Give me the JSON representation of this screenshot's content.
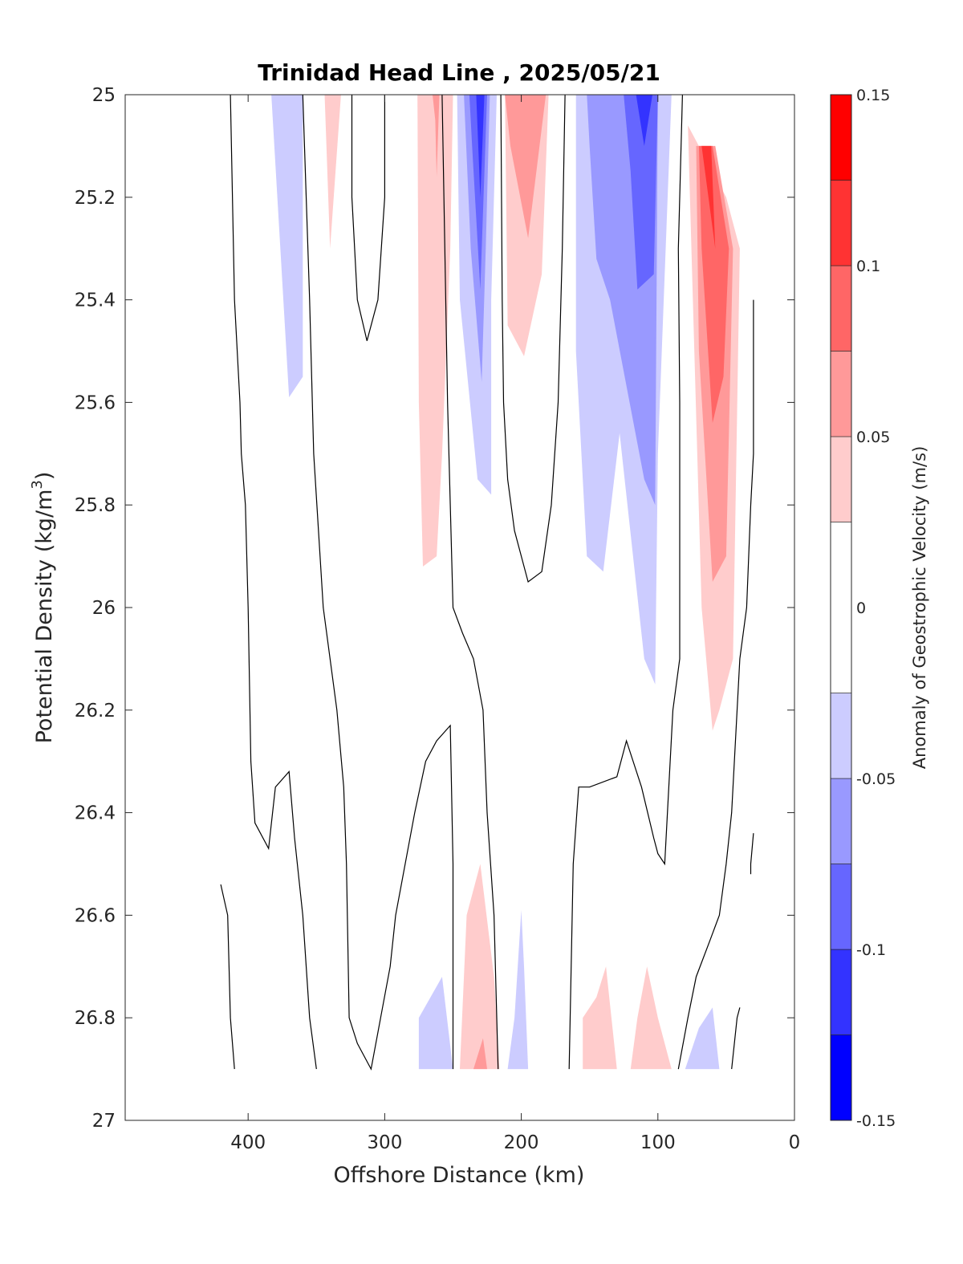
{
  "chart_data": {
    "type": "contour",
    "title": "Trinidad Head Line , 2025/05/21",
    "xlabel": "Offshore Distance (km)",
    "ylabel_main": "Potential Density (kg/m",
    "ylabel_sup": "3",
    "ylabel_close": ")",
    "xlim": [
      490,
      0
    ],
    "ylim": [
      25,
      27
    ],
    "y_reversed": true,
    "x_reversed": true,
    "xticks": [
      400,
      300,
      200,
      100,
      0
    ],
    "xtick_labels": [
      "400",
      "300",
      "200",
      "100",
      "0"
    ],
    "yticks": [
      25,
      25.2,
      25.4,
      25.6,
      25.8,
      26,
      26.2,
      26.4,
      26.6,
      26.8,
      27
    ],
    "ytick_labels": [
      "25",
      "25.2",
      "25.4",
      "25.6",
      "25.8",
      "26",
      "26.2",
      "26.4",
      "26.6",
      "26.8",
      "27"
    ],
    "colorbar": {
      "title": "Anomaly of Geostrophic Velocity (m/s)",
      "range": [
        -0.15,
        0.15
      ],
      "levels": [
        -0.15,
        -0.125,
        -0.1,
        -0.075,
        -0.05,
        -0.025,
        0.025,
        0.05,
        0.075,
        0.1,
        0.125,
        0.15
      ],
      "colors": [
        "#0000ff",
        "#3333ff",
        "#6666ff",
        "#9999ff",
        "#ccccff",
        "#ffffff",
        "#ffcccc",
        "#ff9999",
        "#ff6666",
        "#ff3333",
        "#ff0000"
      ],
      "ticks": [
        -0.15,
        -0.1,
        -0.05,
        0,
        0.05,
        0.1,
        0.15
      ],
      "tick_labels": [
        "-0.15",
        "-0.1",
        "-0.05",
        "0",
        "0.05",
        "0.1",
        "0.15"
      ]
    },
    "filled_regions": [
      {
        "level": -0.05,
        "points": [
          [
            383,
            25
          ],
          [
            360,
            25
          ],
          [
            360,
            25.55
          ],
          [
            370,
            25.59
          ]
        ]
      },
      {
        "level": 0.05,
        "points": [
          [
            344,
            25
          ],
          [
            332,
            25
          ],
          [
            340,
            25.3
          ]
        ]
      },
      {
        "level": 0.05,
        "points": [
          [
            276,
            25
          ],
          [
            250,
            25
          ],
          [
            252,
            25.3
          ],
          [
            258,
            25.7
          ],
          [
            262,
            25.9
          ],
          [
            272,
            25.92
          ],
          [
            275,
            25.6
          ]
        ]
      },
      {
        "level": 0.075,
        "points": [
          [
            265,
            25
          ],
          [
            260,
            25
          ],
          [
            262,
            25.16
          ],
          [
            263,
            25.05
          ]
        ]
      },
      {
        "level": -0.05,
        "points": [
          [
            247,
            25
          ],
          [
            218,
            25
          ],
          [
            222,
            25.4
          ],
          [
            222,
            25.78
          ],
          [
            232,
            25.75
          ],
          [
            245,
            25.4
          ]
        ]
      },
      {
        "level": -0.075,
        "points": [
          [
            242,
            25
          ],
          [
            223,
            25
          ],
          [
            226,
            25.3
          ],
          [
            229,
            25.56
          ],
          [
            237,
            25.3
          ]
        ]
      },
      {
        "level": -0.1,
        "points": [
          [
            238,
            25
          ],
          [
            225,
            25
          ],
          [
            230,
            25.38
          ],
          [
            236,
            25.1
          ]
        ]
      },
      {
        "level": -0.125,
        "points": [
          [
            233,
            25
          ],
          [
            227,
            25
          ],
          [
            230,
            25.2
          ]
        ]
      },
      {
        "level": 0.05,
        "points": [
          [
            212,
            25
          ],
          [
            180,
            25
          ],
          [
            185,
            25.35
          ],
          [
            198,
            25.51
          ],
          [
            210,
            25.45
          ]
        ]
      },
      {
        "level": 0.075,
        "points": [
          [
            212,
            25
          ],
          [
            182,
            25
          ],
          [
            195,
            25.28
          ],
          [
            208,
            25.1
          ]
        ]
      },
      {
        "level": -0.05,
        "points": [
          [
            160,
            25
          ],
          [
            90,
            25
          ],
          [
            100,
            25.7
          ],
          [
            102,
            26.15
          ],
          [
            110,
            26.1
          ],
          [
            128,
            25.66
          ],
          [
            140,
            25.93
          ],
          [
            152,
            25.9
          ],
          [
            160,
            25.5
          ]
        ]
      },
      {
        "level": -0.075,
        "points": [
          [
            152,
            25
          ],
          [
            100,
            25
          ],
          [
            102,
            25.8
          ],
          [
            110,
            25.75
          ],
          [
            135,
            25.4
          ],
          [
            145,
            25.32
          ],
          [
            150,
            25.1
          ]
        ]
      },
      {
        "level": -0.1,
        "points": [
          [
            125,
            25
          ],
          [
            100,
            25
          ],
          [
            103,
            25.35
          ],
          [
            115,
            25.38
          ],
          [
            120,
            25.15
          ]
        ]
      },
      {
        "level": -0.125,
        "points": [
          [
            116,
            25
          ],
          [
            104,
            25
          ],
          [
            110,
            25.1
          ]
        ]
      },
      {
        "level": 0.05,
        "points": [
          [
            78,
            25.06
          ],
          [
            50,
            25.2
          ],
          [
            40,
            25.3
          ],
          [
            45,
            26.1
          ],
          [
            55,
            26.2
          ],
          [
            60,
            26.24
          ],
          [
            68,
            26
          ]
        ]
      },
      {
        "level": 0.075,
        "points": [
          [
            72,
            25.1
          ],
          [
            58,
            25.1
          ],
          [
            45,
            25.3
          ],
          [
            50,
            25.9
          ],
          [
            60,
            25.95
          ],
          [
            70,
            25.5
          ]
        ]
      },
      {
        "level": 0.1,
        "points": [
          [
            70,
            25.1
          ],
          [
            60,
            25.1
          ],
          [
            48,
            25.3
          ],
          [
            52,
            25.55
          ],
          [
            60,
            25.64
          ],
          [
            68,
            25.3
          ]
        ]
      },
      {
        "level": 0.125,
        "points": [
          [
            68,
            25.1
          ],
          [
            61,
            25.1
          ],
          [
            58,
            25.3
          ],
          [
            62,
            25.22
          ]
        ]
      },
      {
        "level": -0.05,
        "points": [
          [
            275,
            26.9
          ],
          [
            250,
            26.9
          ],
          [
            258,
            26.72
          ],
          [
            275,
            26.8
          ]
        ]
      },
      {
        "level": 0.05,
        "points": [
          [
            245,
            26.9
          ],
          [
            216,
            26.9
          ],
          [
            220,
            26.72
          ],
          [
            230,
            26.5
          ],
          [
            240,
            26.6
          ]
        ]
      },
      {
        "level": 0.075,
        "points": [
          [
            235,
            26.9
          ],
          [
            225,
            26.9
          ],
          [
            228,
            26.84
          ]
        ]
      },
      {
        "level": -0.05,
        "points": [
          [
            210,
            26.9
          ],
          [
            195,
            26.9
          ],
          [
            198,
            26.7
          ],
          [
            200,
            26.59
          ],
          [
            205,
            26.8
          ]
        ]
      },
      {
        "level": 0.05,
        "points": [
          [
            155,
            26.9
          ],
          [
            130,
            26.9
          ],
          [
            138,
            26.7
          ],
          [
            145,
            26.76
          ],
          [
            155,
            26.8
          ]
        ]
      },
      {
        "level": 0.05,
        "points": [
          [
            120,
            26.9
          ],
          [
            90,
            26.9
          ],
          [
            100,
            26.8
          ],
          [
            108,
            26.7
          ],
          [
            115,
            26.8
          ]
        ]
      },
      {
        "level": -0.05,
        "points": [
          [
            80,
            26.9
          ],
          [
            55,
            26.9
          ],
          [
            60,
            26.78
          ],
          [
            70,
            26.82
          ]
        ]
      }
    ],
    "zero_contours": [
      [
        [
          413,
          25
        ],
        [
          410,
          25.4
        ],
        [
          406,
          25.6
        ],
        [
          405,
          25.7
        ],
        [
          402,
          25.8
        ],
        [
          400,
          26
        ],
        [
          398,
          26.3
        ],
        [
          395,
          26.42
        ],
        [
          385,
          26.47
        ],
        [
          380,
          26.35
        ],
        [
          370,
          26.32
        ],
        [
          366,
          26.45
        ],
        [
          360,
          26.6
        ],
        [
          355,
          26.8
        ],
        [
          350,
          26.9
        ]
      ],
      [
        [
          360,
          25
        ],
        [
          355,
          25.4
        ],
        [
          352,
          25.7
        ],
        [
          345,
          26
        ],
        [
          340,
          26.1
        ],
        [
          335,
          26.2
        ],
        [
          330,
          26.35
        ],
        [
          328,
          26.5
        ],
        [
          326,
          26.8
        ],
        [
          320,
          26.85
        ],
        [
          310,
          26.9
        ],
        [
          303,
          26.8
        ],
        [
          296,
          26.7
        ],
        [
          292,
          26.6
        ],
        [
          285,
          26.5
        ],
        [
          278,
          26.4
        ],
        [
          270,
          26.3
        ],
        [
          262,
          26.26
        ],
        [
          252,
          26.23
        ],
        [
          250,
          26.5
        ],
        [
          250,
          26.9
        ]
      ],
      [
        [
          324,
          25
        ],
        [
          324,
          25.2
        ],
        [
          320,
          25.4
        ],
        [
          313,
          25.48
        ],
        [
          305,
          25.4
        ],
        [
          300,
          25.2
        ],
        [
          300,
          25
        ]
      ],
      [
        [
          258,
          25
        ],
        [
          256,
          25.3
        ],
        [
          254,
          25.6
        ],
        [
          252,
          25.8
        ],
        [
          250,
          26
        ],
        [
          243,
          26.05
        ],
        [
          235,
          26.1
        ],
        [
          228,
          26.2
        ],
        [
          225,
          26.4
        ],
        [
          220,
          26.6
        ],
        [
          217,
          26.9
        ]
      ],
      [
        [
          215,
          25
        ],
        [
          214,
          25.4
        ],
        [
          213,
          25.6
        ],
        [
          210,
          25.75
        ],
        [
          205,
          25.85
        ],
        [
          200,
          25.9
        ],
        [
          195,
          25.95
        ],
        [
          185,
          25.93
        ],
        [
          178,
          25.8
        ],
        [
          173,
          25.6
        ],
        [
          170,
          25.3
        ],
        [
          168,
          25
        ]
      ],
      [
        [
          82,
          25
        ],
        [
          85,
          25.3
        ],
        [
          84,
          25.6
        ],
        [
          84,
          26.1
        ],
        [
          89,
          26.2
        ],
        [
          93,
          26.4
        ],
        [
          95,
          26.5
        ],
        [
          100,
          26.48
        ],
        [
          103,
          26.45
        ],
        [
          112,
          26.35
        ],
        [
          123,
          26.26
        ],
        [
          130,
          26.33
        ],
        [
          150,
          26.35
        ],
        [
          158,
          26.35
        ],
        [
          162,
          26.5
        ],
        [
          165,
          26.9
        ]
      ],
      [
        [
          30,
          25.4
        ],
        [
          30,
          25.7
        ],
        [
          32,
          25.8
        ],
        [
          35,
          26
        ],
        [
          40,
          26.1
        ],
        [
          46,
          26.4
        ],
        [
          50,
          26.5
        ],
        [
          55,
          26.6
        ],
        [
          62,
          26.65
        ],
        [
          72,
          26.72
        ],
        [
          78,
          26.8
        ],
        [
          85,
          26.9
        ]
      ],
      [
        [
          420,
          26.54
        ],
        [
          415,
          26.6
        ],
        [
          413,
          26.8
        ],
        [
          410,
          26.9
        ]
      ],
      [
        [
          40,
          26.78
        ],
        [
          42,
          26.8
        ],
        [
          46,
          26.9
        ]
      ],
      [
        [
          30,
          26.44
        ],
        [
          32,
          26.5
        ],
        [
          32,
          26.52
        ]
      ]
    ]
  }
}
